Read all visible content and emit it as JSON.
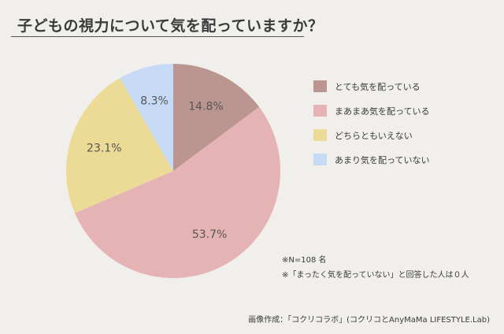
{
  "title": "子どもの視力について気を配っていますか？",
  "chart_data": {
    "type": "pie",
    "title": "子どもの視力について気を配っていますか？",
    "categories": [
      "とても気を配っている",
      "まあまあ気を配っている",
      "どちらともいえない",
      "あまり気を配っていない"
    ],
    "values": [
      14.8,
      53.7,
      23.1,
      8.3
    ],
    "value_labels": [
      "14.8%",
      "53.7%",
      "23.1%",
      "8.3%"
    ],
    "colors": [
      "#bb9590",
      "#e5b3b4",
      "#ecdb96",
      "#c6daf5"
    ],
    "legend_position": "right"
  },
  "notes": {
    "sample": "※N=108 名",
    "remark": "※「まったく気を配っていない」と回答した人は０人"
  },
  "credit": "画像作成：「コクリコラボ」(コクリコとAnyMaMa LIFESTYLE.Lab)"
}
